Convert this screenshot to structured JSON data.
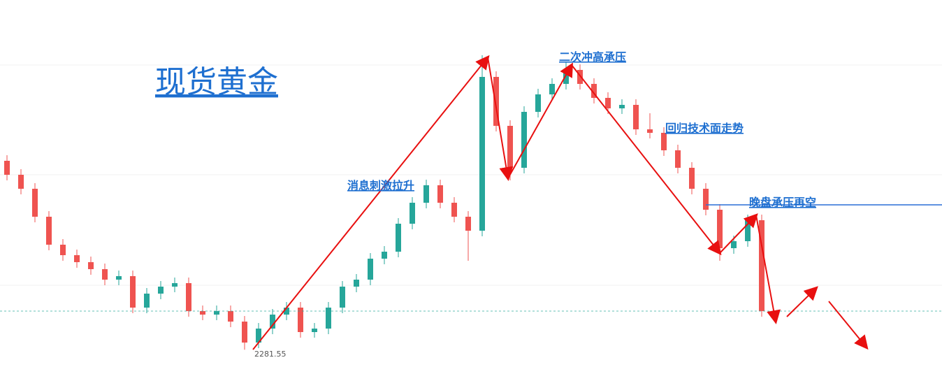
{
  "chart_data": {
    "type": "candlestick",
    "title": "现货黄金",
    "annotations": [
      "二次冲高承压",
      "回归技术面走势",
      "消息刺激拉升",
      "晚盘承压再空"
    ],
    "ylim": [
      2270.6,
      2381.6
    ],
    "up_color": "#26a69a",
    "down_color": "#ef5350",
    "resistance_level": 2323.0,
    "open": [
      2335.6,
      2331.6,
      2327.6,
      2319.6,
      2311.6,
      2308.6,
      2306.6,
      2304.6,
      2301.6,
      2302.6,
      2293.6,
      2297.6,
      2299.6,
      2300.6,
      2292.6,
      2291.6,
      2292.6,
      2289.6,
      2283.6,
      2287.6,
      2291.6,
      2293.6,
      2286.6,
      2287.6,
      2293.6,
      2299.6,
      2301.6,
      2307.6,
      2309.6,
      2317.6,
      2323.6,
      2328.6,
      2323.6,
      2319.6,
      2315.6,
      2359.6,
      2345.6,
      2333.6,
      2349.6,
      2354.6,
      2357.6,
      2361.6,
      2357.6,
      2353.6,
      2350.6,
      2351.6,
      2344.6,
      2343.6,
      2338.6,
      2333.6,
      2327.6,
      2321.6,
      2310.6,
      2312.6,
      2318.6
    ],
    "high": [
      2337.2,
      2333.2,
      2329.2,
      2321.2,
      2313.2,
      2310.2,
      2308.2,
      2306.2,
      2304.2,
      2304.2,
      2299.2,
      2301.2,
      2302.2,
      2302.2,
      2294.2,
      2294.2,
      2294.2,
      2291.2,
      2289.2,
      2293.2,
      2295.2,
      2295.2,
      2289.2,
      2295.2,
      2301.2,
      2303.2,
      2309.2,
      2311.2,
      2319.2,
      2325.2,
      2330.2,
      2330.2,
      2325.2,
      2321.2,
      2365.8,
      2361.2,
      2347.2,
      2351.2,
      2356.2,
      2359.2,
      2364.0,
      2363.2,
      2359.2,
      2355.2,
      2353.2,
      2353.2,
      2349.2,
      2345.2,
      2340.2,
      2335.2,
      2329.2,
      2323.2,
      2314.2,
      2320.2,
      2320.2
    ],
    "low": [
      2330.0,
      2326.0,
      2318.0,
      2310.0,
      2307.0,
      2305.0,
      2303.0,
      2300.0,
      2300.0,
      2292.0,
      2292.0,
      2296.0,
      2298.0,
      2291.0,
      2290.0,
      2290.0,
      2288.0,
      2281.55,
      2282.0,
      2286.0,
      2290.0,
      2285.0,
      2285.0,
      2286.0,
      2292.0,
      2298.0,
      2300.0,
      2306.0,
      2308.0,
      2316.0,
      2322.0,
      2322.0,
      2318.0,
      2307.0,
      2314.0,
      2344.0,
      2330.0,
      2332.0,
      2348.0,
      2353.0,
      2356.0,
      2356.0,
      2352.0,
      2349.0,
      2349.0,
      2343.0,
      2342.0,
      2337.0,
      2332.0,
      2326.0,
      2320.0,
      2307.0,
      2309.0,
      2311.0,
      2291.0
    ],
    "close": [
      2331.6,
      2327.6,
      2319.6,
      2311.6,
      2308.6,
      2306.6,
      2304.6,
      2301.6,
      2302.6,
      2293.6,
      2297.6,
      2299.6,
      2300.6,
      2292.6,
      2291.6,
      2292.6,
      2289.6,
      2283.6,
      2287.6,
      2291.6,
      2293.6,
      2286.6,
      2287.6,
      2293.6,
      2299.6,
      2301.6,
      2307.6,
      2309.6,
      2317.6,
      2323.6,
      2328.6,
      2323.6,
      2319.6,
      2315.6,
      2359.6,
      2345.6,
      2333.6,
      2349.6,
      2354.6,
      2357.6,
      2361.6,
      2357.6,
      2353.6,
      2350.6,
      2351.6,
      2344.6,
      2343.6,
      2338.6,
      2333.6,
      2327.6,
      2321.6,
      2310.6,
      2312.6,
      2318.6,
      2292.6
    ]
  }
}
